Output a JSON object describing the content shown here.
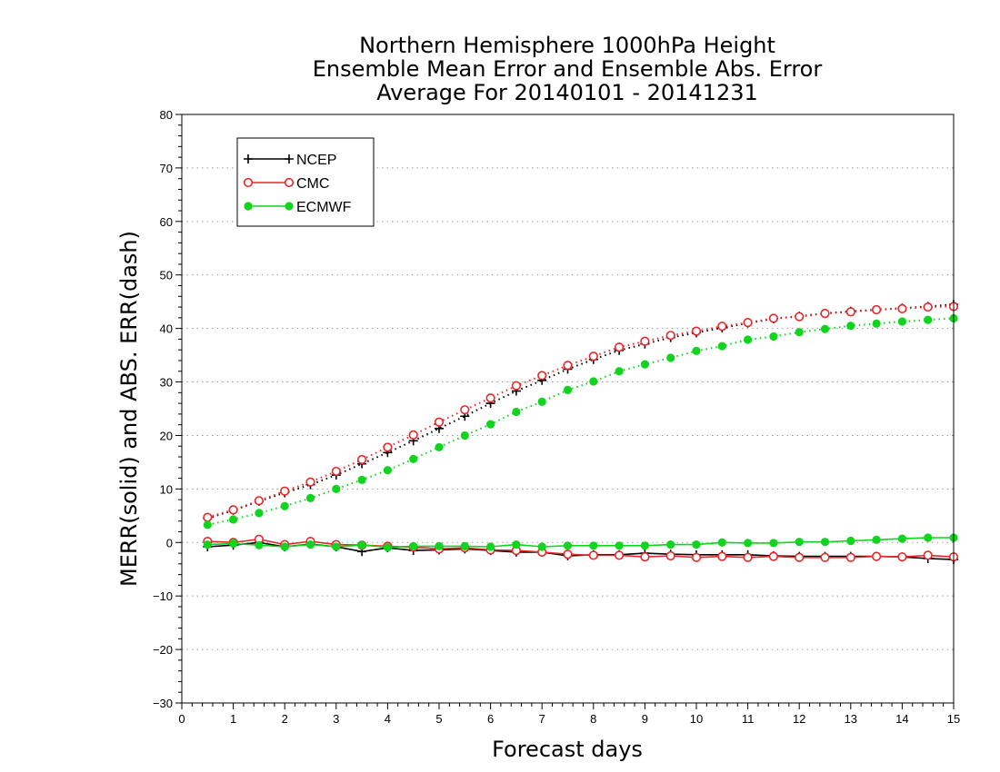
{
  "chart_data": {
    "type": "line",
    "title": [
      "Northern Hemisphere 1000hPa Height",
      "Ensemble Mean Error and Ensemble Abs. Error",
      "Average For 20140101 - 20141231"
    ],
    "xlabel": "Forecast days",
    "ylabel": "MERR(solid) and ABS. ERR(dash)",
    "xlim": [
      0,
      15
    ],
    "ylim": [
      -30,
      80
    ],
    "xticks": [
      "0",
      "1",
      "2",
      "3",
      "4",
      "5",
      "6",
      "7",
      "8",
      "9",
      "10",
      "11",
      "12",
      "13",
      "14",
      "15"
    ],
    "yticks": [
      "80",
      "70",
      "60",
      "50",
      "40",
      "30",
      "20",
      "10",
      "0",
      "−10",
      "−20",
      "−30"
    ],
    "grid": "horizontal dotted",
    "legend_position": "top-left",
    "x": [
      0.5,
      1,
      1.5,
      2,
      2.5,
      3,
      3.5,
      4,
      4.5,
      5,
      5.5,
      6,
      6.5,
      7,
      7.5,
      8,
      8.5,
      9,
      9.5,
      10,
      10.5,
      11,
      11.5,
      12,
      12.5,
      13,
      13.5,
      14,
      14.5,
      15
    ],
    "series": [
      {
        "name": "NCEP",
        "color": "#000000",
        "marker": "plus",
        "merr": [
          -0.8,
          -0.5,
          0,
          -0.8,
          -0.3,
          -0.8,
          -1.7,
          -1.0,
          -1.5,
          -1.4,
          -1.2,
          -1.5,
          -1.8,
          -1.8,
          -2.5,
          -2.3,
          -2.3,
          -2.0,
          -2.2,
          -2.3,
          -2.3,
          -2.3,
          -2.5,
          -2.6,
          -2.6,
          -2.6,
          -2.6,
          -2.7,
          -3.0,
          -3.2
        ],
        "abs_err": [
          4.5,
          6.0,
          7.7,
          9.3,
          10.8,
          12.6,
          14.7,
          16.8,
          19.0,
          21.3,
          23.6,
          26.0,
          28.3,
          30.3,
          32.4,
          34.2,
          35.9,
          37.1,
          38.3,
          39.2,
          40.1,
          41.0,
          41.8,
          42.3,
          42.8,
          43.2,
          43.5,
          43.8,
          44.1,
          44.5
        ]
      },
      {
        "name": "CMC",
        "color": "#e8272a",
        "marker": "open-circle",
        "merr": [
          0.2,
          0,
          0.6,
          -0.4,
          0.2,
          -0.4,
          -0.5,
          -0.7,
          -0.9,
          -1.2,
          -1.0,
          -1.4,
          -1.5,
          -1.8,
          -2.2,
          -2.4,
          -2.4,
          -2.7,
          -2.5,
          -2.8,
          -2.6,
          -2.8,
          -2.6,
          -2.8,
          -2.8,
          -2.8,
          -2.6,
          -2.7,
          -2.4,
          -2.7
        ],
        "abs_err": [
          4.7,
          6.1,
          7.8,
          9.6,
          11.3,
          13.3,
          15.5,
          17.8,
          20.1,
          22.5,
          24.8,
          27.0,
          29.3,
          31.2,
          33.1,
          34.8,
          36.5,
          37.6,
          38.7,
          39.5,
          40.4,
          41.1,
          41.9,
          42.2,
          42.8,
          43.1,
          43.5,
          43.7,
          44.0,
          44.1
        ]
      },
      {
        "name": "ECMWF",
        "color": "#11d41e",
        "marker": "filled-circle",
        "merr": [
          -0.4,
          -0.2,
          -0.5,
          -0.8,
          -0.4,
          -0.8,
          -0.5,
          -0.9,
          -0.7,
          -0.7,
          -0.7,
          -0.8,
          -0.4,
          -0.8,
          -0.6,
          -0.6,
          -0.6,
          -0.6,
          -0.4,
          -0.4,
          0.0,
          -0.1,
          -0.1,
          0.1,
          0.1,
          0.3,
          0.5,
          0.7,
          0.9,
          0.9
        ],
        "abs_err": [
          3.3,
          4.3,
          5.5,
          6.8,
          8.3,
          10.0,
          11.7,
          13.5,
          15.6,
          17.8,
          20.0,
          22.1,
          24.4,
          26.3,
          28.5,
          30.1,
          32.0,
          33.3,
          34.5,
          35.8,
          36.7,
          37.9,
          38.5,
          39.3,
          39.9,
          40.5,
          40.9,
          41.3,
          41.6,
          41.9
        ]
      }
    ]
  }
}
